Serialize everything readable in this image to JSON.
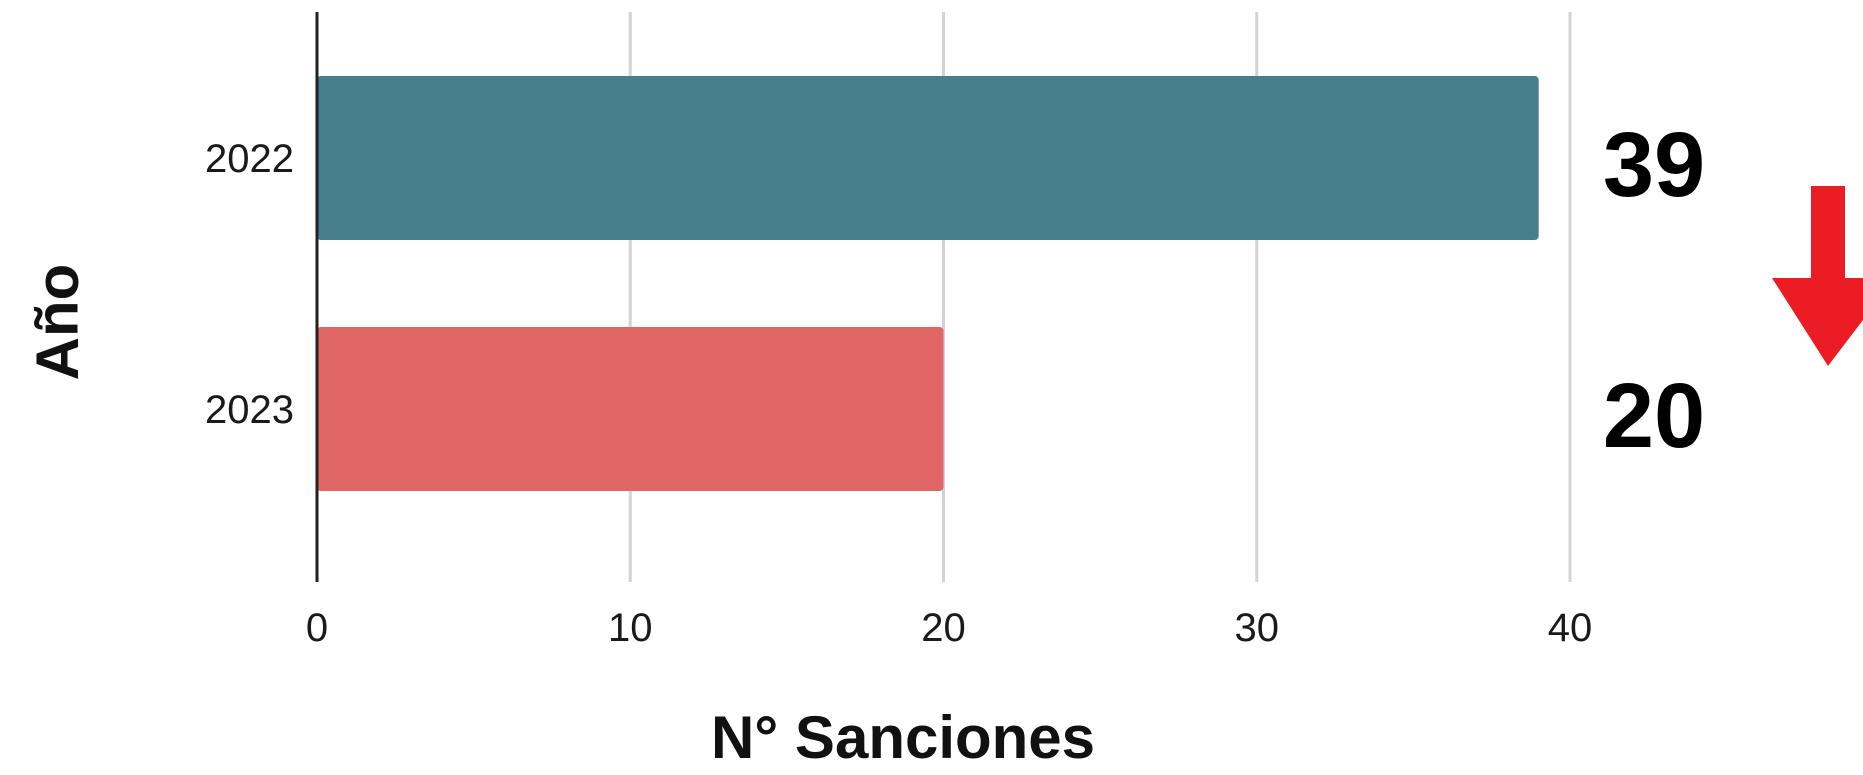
{
  "chart_data": {
    "type": "bar",
    "orientation": "horizontal",
    "categories": [
      "2022",
      "2023"
    ],
    "values": [
      39,
      20
    ],
    "bar_colors": [
      "#47808c",
      "#e06666"
    ],
    "xlabel": "N° Sanciones",
    "ylabel": "Año",
    "xlim": [
      0,
      40
    ],
    "xticks": [
      0,
      10,
      20,
      30,
      40
    ],
    "grid": "vertical",
    "value_labels": [
      "39",
      "20"
    ],
    "trend_indicator": {
      "icon": "down-arrow-icon",
      "color": "#ec1c24"
    }
  }
}
